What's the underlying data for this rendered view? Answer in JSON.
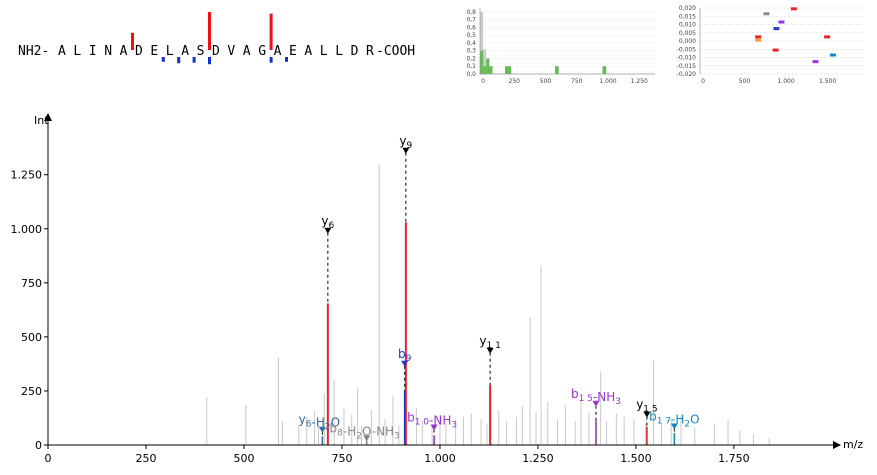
{
  "sequence": {
    "nterm": "NH2",
    "cterm": "COOH",
    "residues": [
      "A",
      "L",
      "I",
      "N",
      "A",
      "D",
      "E",
      "L",
      "A",
      "S",
      "D",
      "V",
      "A",
      "G",
      "A",
      "E",
      "A",
      "L",
      "L",
      "D",
      "R"
    ],
    "y_markers": [
      {
        "after": 5,
        "level": 0.35
      },
      {
        "after": 10,
        "level": 1.0
      },
      {
        "after": 14,
        "level": 0.95
      }
    ],
    "b_markers": [
      {
        "after": 7,
        "level": 0.3
      },
      {
        "after": 8,
        "level": 0.55
      },
      {
        "after": 9,
        "level": 0.45
      },
      {
        "after": 10,
        "level": 0.7
      },
      {
        "after": 14,
        "level": 0.45
      },
      {
        "after": 15,
        "level": 0.3
      }
    ]
  },
  "inset1": {
    "yticks": [
      "0,8",
      "0,7",
      "0,6",
      "0,5",
      "0,4",
      "0,3",
      "0,2",
      "0,1",
      "0,0"
    ],
    "xticks": [
      "0",
      "250",
      "500",
      "750",
      "1.000",
      "1.250"
    ],
    "xmax": 1400,
    "ymax": 0.85,
    "gray_bins": [
      {
        "x0": 0,
        "x1": 25,
        "v": 0.8
      },
      {
        "x0": 25,
        "x1": 50,
        "v": 0.32
      },
      {
        "x0": 50,
        "x1": 75,
        "v": 0.12
      },
      {
        "x0": 75,
        "x1": 100,
        "v": 0.05
      }
    ],
    "green_bins": [
      {
        "x0": 0,
        "x1": 25,
        "v": 0.3
      },
      {
        "x0": 25,
        "x1": 50,
        "v": 0.1
      },
      {
        "x0": 50,
        "x1": 75,
        "v": 0.2
      },
      {
        "x0": 75,
        "x1": 100,
        "v": 0.1
      },
      {
        "x0": 200,
        "x1": 250,
        "v": 0.1
      },
      {
        "x0": 600,
        "x1": 630,
        "v": 0.1
      },
      {
        "x0": 980,
        "x1": 1010,
        "v": 0.1
      }
    ],
    "gray_color": "#cccccc",
    "green_color": "#66bb55"
  },
  "inset2": {
    "yticks": [
      "0,020",
      "0,015",
      "0,010",
      "0,005",
      "0,000",
      "-0,005",
      "-0,010",
      "-0,015",
      "-0,020"
    ],
    "xticks": [
      "0",
      "500",
      "1.000",
      "1.500"
    ],
    "xmax": 1950,
    "ymin": -0.02,
    "ymax": 0.02,
    "points": [
      {
        "x": 1130,
        "y": 0.0195,
        "color": "#ee2222"
      },
      {
        "x": 800,
        "y": 0.0165,
        "color": "#888888"
      },
      {
        "x": 980,
        "y": 0.0115,
        "color": "#9933ee"
      },
      {
        "x": 920,
        "y": 0.0075,
        "color": "#2233cc"
      },
      {
        "x": 700,
        "y": 0.0025,
        "color": "#ee2222"
      },
      {
        "x": 700,
        "y": 0.0005,
        "color": "#ff9933"
      },
      {
        "x": 1530,
        "y": 0.0025,
        "color": "#ee2222"
      },
      {
        "x": 910,
        "y": -0.0055,
        "color": "#ee2222"
      },
      {
        "x": 1600,
        "y": -0.0085,
        "color": "#1188cc"
      },
      {
        "x": 1390,
        "y": -0.0125,
        "color": "#9933ee"
      }
    ]
  },
  "chart_data": {
    "type": "bar",
    "xlabel": "m/z",
    "ylabel": "Int",
    "xlim": [
      0,
      1990
    ],
    "ylim": [
      0,
      1480
    ],
    "xticks": [
      {
        "v": 0,
        "label": "0"
      },
      {
        "v": 250,
        "label": "250"
      },
      {
        "v": 500,
        "label": "500"
      },
      {
        "v": 750,
        "label": "750"
      },
      {
        "v": 1000,
        "label": "1.000"
      },
      {
        "v": 1250,
        "label": "1.250"
      },
      {
        "v": 1500,
        "label": "1.500"
      },
      {
        "v": 1750,
        "label": "1.750"
      }
    ],
    "yticks": [
      {
        "v": 0,
        "label": "0"
      },
      {
        "v": 250,
        "label": "250"
      },
      {
        "v": 500,
        "label": "500"
      },
      {
        "v": 750,
        "label": "750"
      },
      {
        "v": 1000,
        "label": "1.000"
      },
      {
        "v": 1250,
        "label": "1.250"
      }
    ],
    "background_peaks": [
      [
        405,
        220
      ],
      [
        505,
        185
      ],
      [
        588,
        405
      ],
      [
        598,
        110
      ],
      [
        640,
        95
      ],
      [
        660,
        130
      ],
      [
        680,
        160
      ],
      [
        690,
        90
      ],
      [
        705,
        240
      ],
      [
        730,
        300
      ],
      [
        755,
        170
      ],
      [
        775,
        140
      ],
      [
        790,
        260
      ],
      [
        800,
        90
      ],
      [
        825,
        160
      ],
      [
        845,
        1300
      ],
      [
        860,
        120
      ],
      [
        880,
        230
      ],
      [
        895,
        90
      ],
      [
        940,
        170
      ],
      [
        955,
        115
      ],
      [
        980,
        90
      ],
      [
        1000,
        140
      ],
      [
        1015,
        105
      ],
      [
        1040,
        120
      ],
      [
        1060,
        130
      ],
      [
        1080,
        145
      ],
      [
        1105,
        120
      ],
      [
        1120,
        95
      ],
      [
        1150,
        160
      ],
      [
        1170,
        110
      ],
      [
        1195,
        130
      ],
      [
        1210,
        180
      ],
      [
        1230,
        590
      ],
      [
        1245,
        150
      ],
      [
        1258,
        830
      ],
      [
        1275,
        200
      ],
      [
        1300,
        120
      ],
      [
        1320,
        185
      ],
      [
        1345,
        110
      ],
      [
        1360,
        210
      ],
      [
        1380,
        150
      ],
      [
        1410,
        340
      ],
      [
        1425,
        110
      ],
      [
        1450,
        145
      ],
      [
        1470,
        130
      ],
      [
        1495,
        120
      ],
      [
        1525,
        100
      ],
      [
        1545,
        390
      ],
      [
        1565,
        100
      ],
      [
        1590,
        120
      ],
      [
        1615,
        140
      ],
      [
        1650,
        80
      ],
      [
        1700,
        100
      ],
      [
        1735,
        115
      ],
      [
        1765,
        70
      ],
      [
        1800,
        50
      ],
      [
        1840,
        30
      ]
    ],
    "annotated_peaks": [
      {
        "mz": 714,
        "int": 655,
        "color": "#ee2222",
        "label": "y6",
        "label_int": 1000,
        "marker": "tri",
        "bold": true
      },
      {
        "mz": 913,
        "int": 1030,
        "color": "#ee2222",
        "label": "y9",
        "label_int": 1370,
        "marker": "tri",
        "bold": true
      },
      {
        "mz": 1128,
        "int": 275,
        "color": "#ee2222",
        "label": "y11",
        "label_int": 445,
        "marker": "tri",
        "bold": true
      },
      {
        "mz": 1528,
        "int": 85,
        "color": "#ee2222",
        "label": "y15",
        "label_int": 150,
        "marker": "tri",
        "bold": false
      },
      {
        "mz": 910,
        "int": 250,
        "color": "#2233cc",
        "label": "b9",
        "label_int": 385,
        "marker": "tri",
        "bold": false
      },
      {
        "mz": 700,
        "int": 40,
        "color": "#3366aa",
        "label": "y6-H2O",
        "label_int": 80,
        "marker": "tri",
        "bold": false
      },
      {
        "mz": 813,
        "int": 22,
        "color": "#888888",
        "label": "b8-H2O-NH3",
        "label_int": 40,
        "marker": "tri",
        "bold": false
      },
      {
        "mz": 985,
        "int": 45,
        "color": "#9933cc",
        "label": "b10-NH3",
        "label_int": 90,
        "marker": "tri",
        "bold": false
      },
      {
        "mz": 1398,
        "int": 115,
        "color": "#9933cc",
        "label": "b15-NH3",
        "label_int": 200,
        "marker": "tri",
        "bold": false
      },
      {
        "mz": 1598,
        "int": 55,
        "color": "#1188cc",
        "label": "b17-H2O",
        "label_int": 95,
        "marker": "tri",
        "bold": false
      }
    ],
    "label_positions": {
      "y6": {
        "dx": 0,
        "anchor": "middle"
      },
      "y9": {
        "dx": 0,
        "anchor": "middle"
      },
      "y11": {
        "dx": 0,
        "anchor": "middle"
      },
      "y15": {
        "dx": 0,
        "anchor": "middle"
      },
      "b9": {
        "dx": 0,
        "anchor": "middle"
      },
      "y6-H2O": {
        "dx": -3,
        "anchor": "middle"
      },
      "b8-H2O-NH3": {
        "dx": -2,
        "anchor": "middle"
      },
      "b10-NH3": {
        "dx": -2,
        "anchor": "middle"
      },
      "b15-NH3": {
        "dx": 0,
        "anchor": "middle"
      },
      "b17-H2O": {
        "dx": 0,
        "anchor": "middle"
      }
    }
  }
}
